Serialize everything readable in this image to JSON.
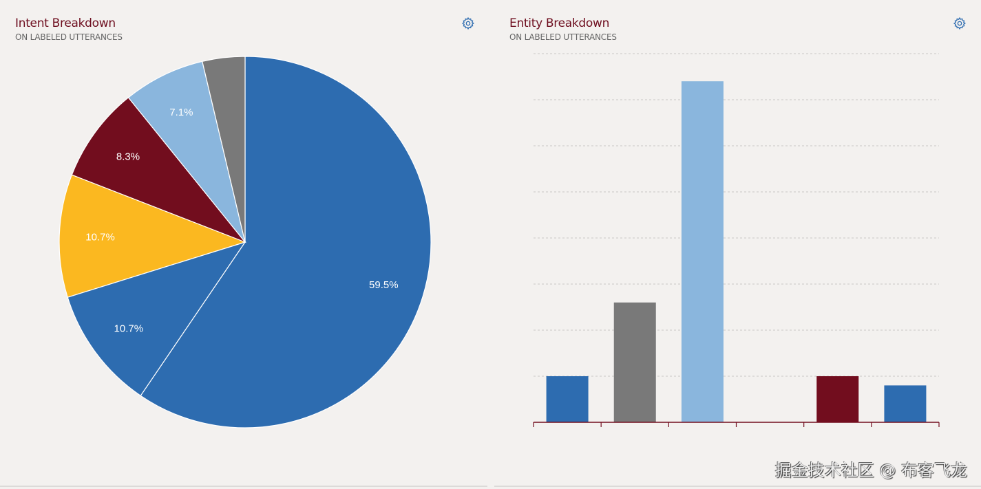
{
  "intent_panel": {
    "title": "Intent Breakdown",
    "subtitle": "ON LABELED UTTERANCES",
    "settings_icon": "gear-icon"
  },
  "entity_panel": {
    "title": "Entity Breakdown",
    "subtitle": "ON LABELED UTTERANCES",
    "settings_icon": "gear-icon"
  },
  "watermark": "掘金技术社区 @ 布客飞龙",
  "chart_data": [
    {
      "type": "pie",
      "title": "Intent Breakdown",
      "subtitle": "ON LABELED UTTERANCES",
      "slices": [
        {
          "value": 59.5,
          "label": "59.5%",
          "color": "#2d6cb0"
        },
        {
          "value": 10.7,
          "label": "10.7%",
          "color": "#2d6cb0"
        },
        {
          "value": 10.7,
          "label": "10.7%",
          "color": "#fbb820"
        },
        {
          "value": 8.3,
          "label": "8.3%",
          "color": "#720d1e"
        },
        {
          "value": 7.1,
          "label": "7.1%",
          "color": "#8ab6dd"
        },
        {
          "value": 3.7,
          "label": "",
          "color": "#797979"
        }
      ]
    },
    {
      "type": "bar",
      "title": "Entity Breakdown",
      "subtitle": "ON LABELED UTTERANCES",
      "values": [
        1,
        2.6,
        7.4,
        0,
        1,
        0.8
      ],
      "colors": [
        "#2d6cb0",
        "#797979",
        "#8ab6dd",
        "#fbb820",
        "#720d1e",
        "#2d6cb0"
      ],
      "ylim": [
        0,
        8
      ],
      "grid": true,
      "axis_color": "#720d1e"
    }
  ]
}
